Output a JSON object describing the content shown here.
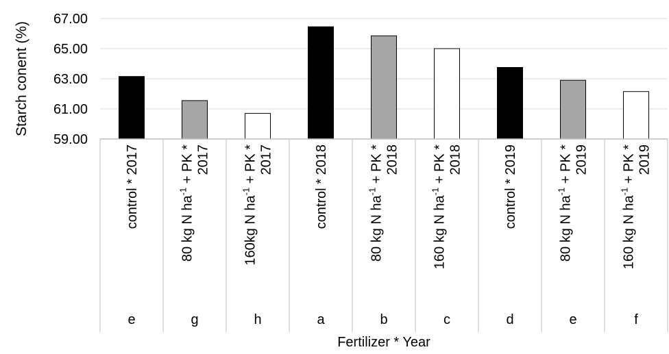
{
  "chart_data": {
    "type": "bar",
    "xlabel": "Fertilizer * Year",
    "ylabel": "Starch conent (%)",
    "ylim": [
      59.0,
      67.0
    ],
    "yticks": [
      "59.00",
      "61.00",
      "63.00",
      "65.00",
      "67.00"
    ],
    "grid": true,
    "categories": [
      {
        "lines": [
          {
            "t": "control * 2017"
          }
        ],
        "letter": "e"
      },
      {
        "lines": [
          {
            "t": "80 kg N ha",
            "sup": "-1",
            "rest": "  + PK *"
          },
          {
            "t": "2017"
          }
        ],
        "letter": "g"
      },
      {
        "lines": [
          {
            "t": "160kg N ha",
            "sup": "-1",
            "rest": "  + PK *"
          },
          {
            "t": "2017"
          }
        ],
        "letter": "h"
      },
      {
        "lines": [
          {
            "t": "control * 2018"
          }
        ],
        "letter": "a"
      },
      {
        "lines": [
          {
            "t": "80 kg N ha",
            "sup": "-1",
            "rest": "  + PK *"
          },
          {
            "t": "2018"
          }
        ],
        "letter": "b"
      },
      {
        "lines": [
          {
            "t": "160 kg N ha",
            "sup": "-1",
            "rest": "  + PK *"
          },
          {
            "t": "2018"
          }
        ],
        "letter": "c"
      },
      {
        "lines": [
          {
            "t": "control  * 2019"
          }
        ],
        "letter": "d"
      },
      {
        "lines": [
          {
            "t": "80 kg N ha",
            "sup": "-1",
            "rest": "  + PK *"
          },
          {
            "t": "2019"
          }
        ],
        "letter": "e"
      },
      {
        "lines": [
          {
            "t": "160 kg N ha",
            "sup": "-1",
            "rest": "  + PK *"
          },
          {
            "t": "2019"
          }
        ],
        "letter": "f"
      }
    ],
    "values": [
      63.15,
      61.55,
      60.7,
      66.45,
      65.85,
      65.0,
      63.75,
      62.9,
      62.15
    ],
    "bar_colors": [
      "#000000",
      "#a6a6a6",
      "#ffffff",
      "#000000",
      "#a6a6a6",
      "#ffffff",
      "#000000",
      "#a6a6a6",
      "#ffffff"
    ],
    "bar_edge": "#000000",
    "grid_color": "#d9d9d9",
    "axis_color": "#bfbfbf"
  }
}
